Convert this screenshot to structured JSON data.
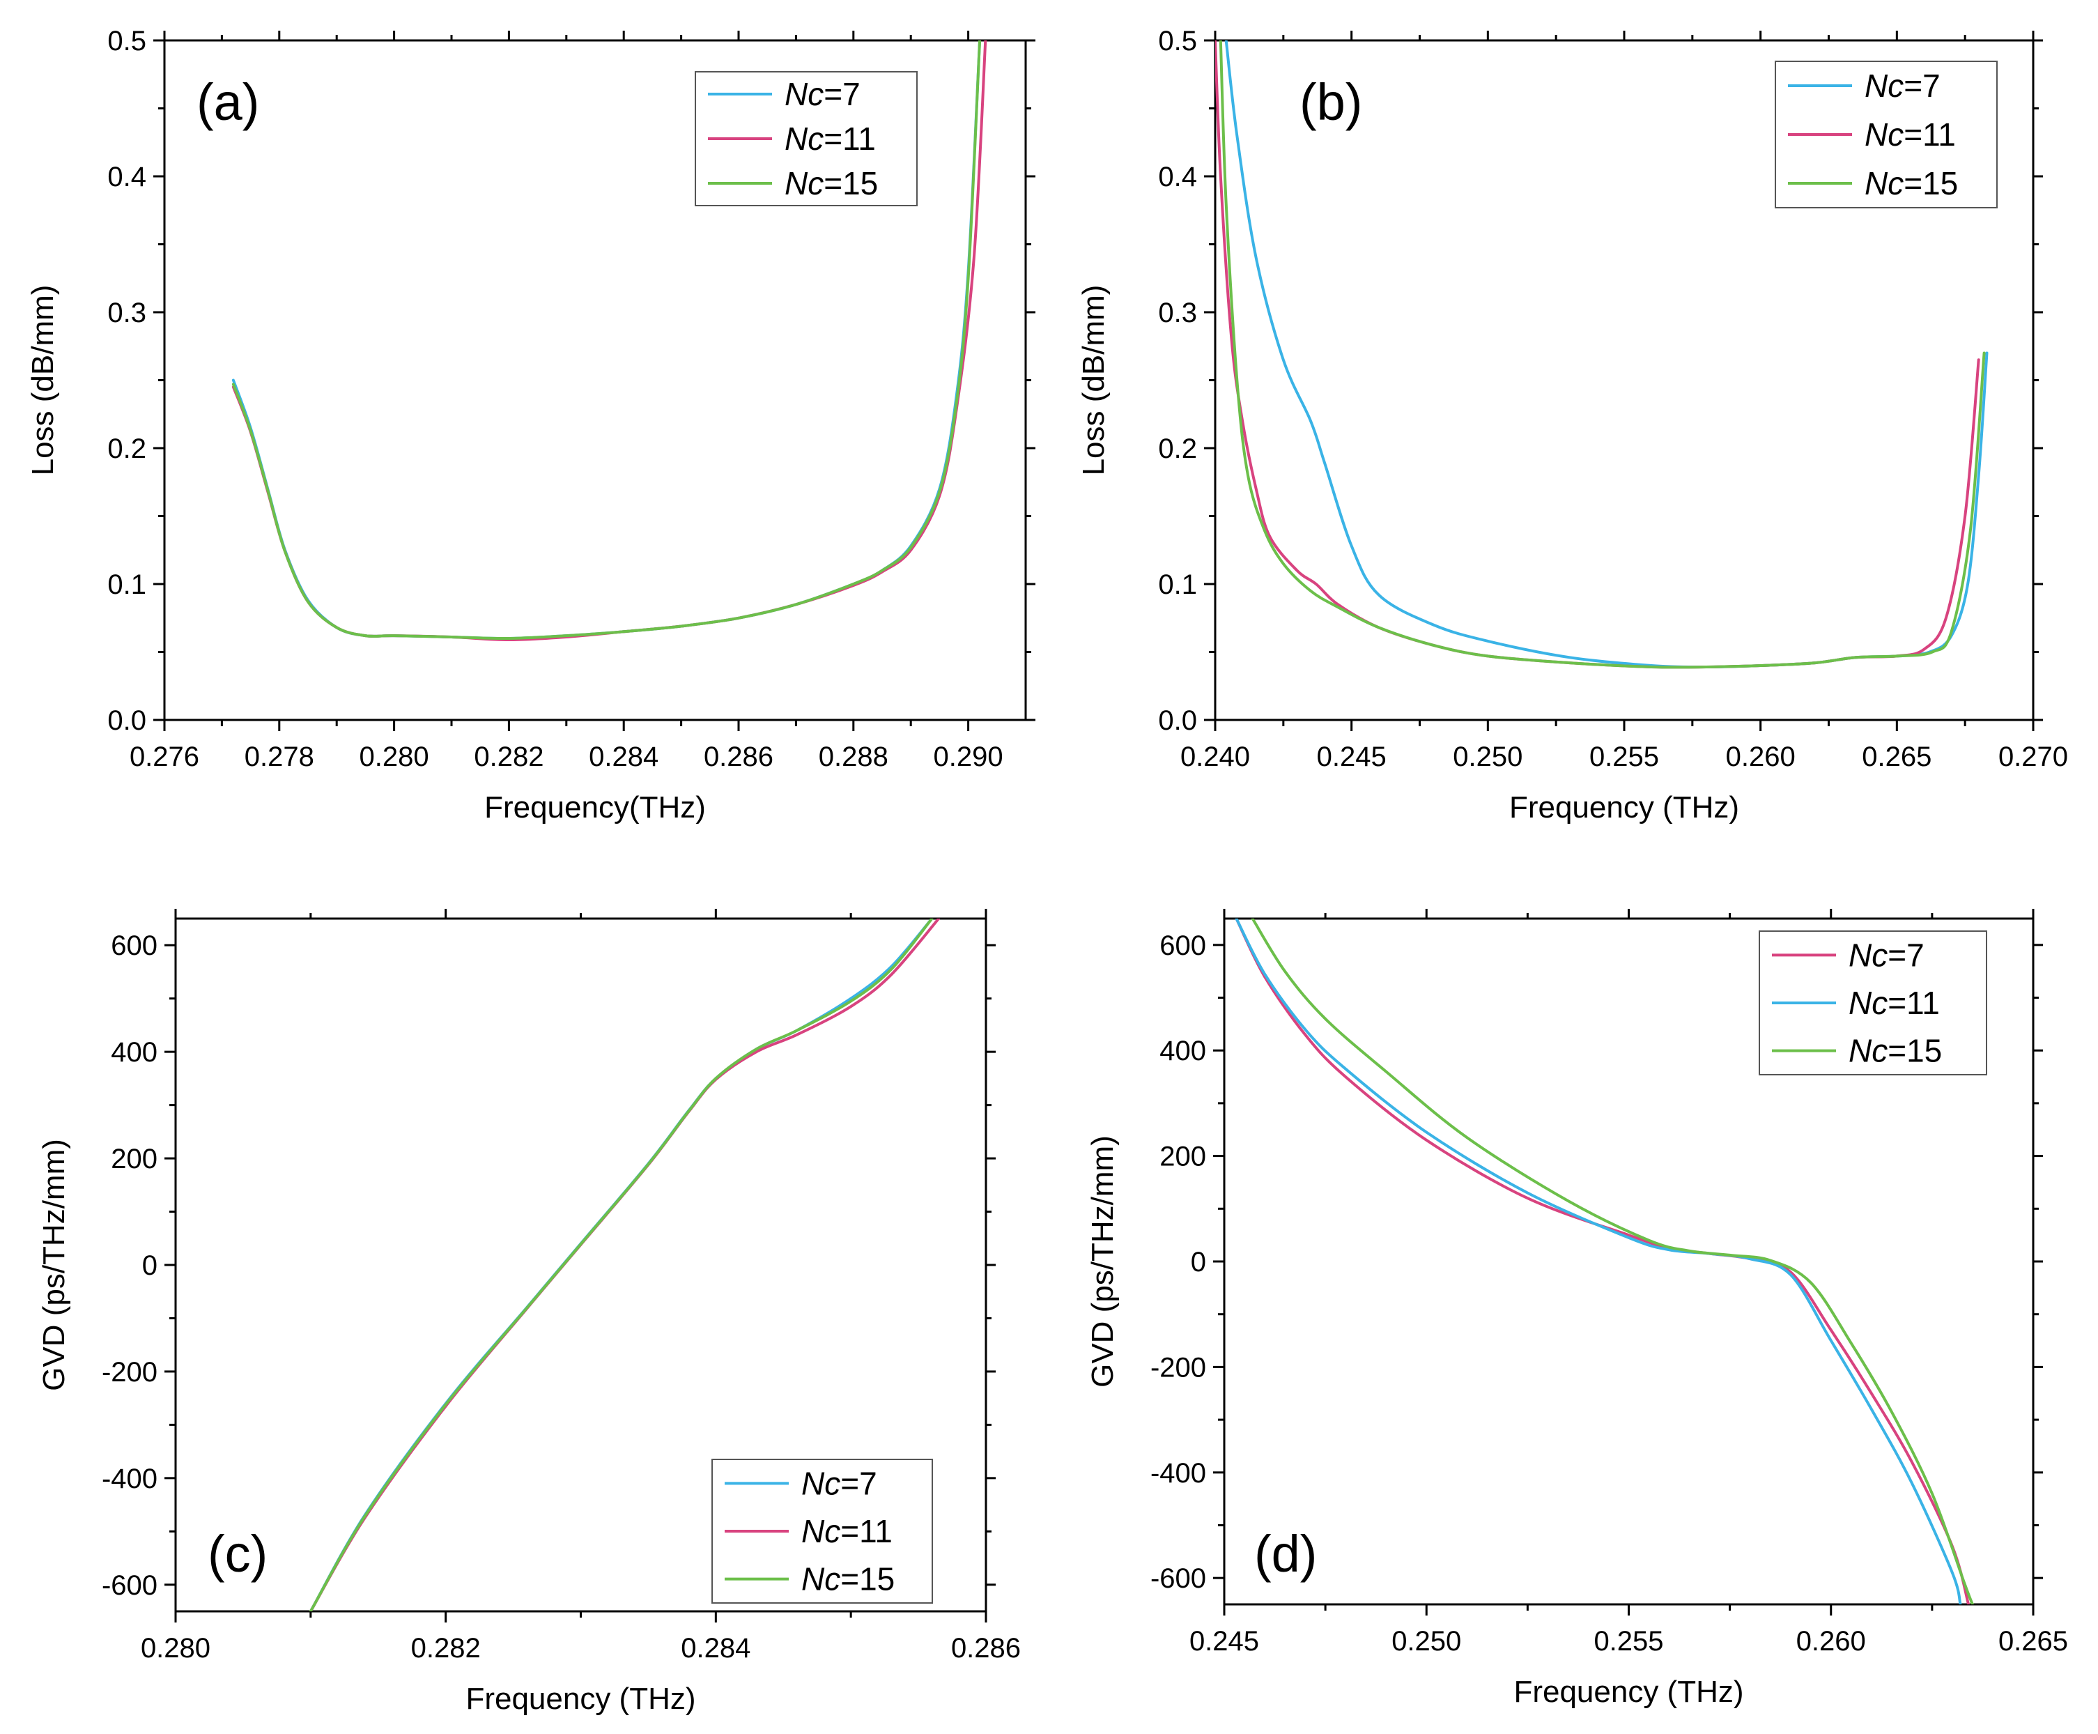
{
  "chart_data": [
    {
      "panel": "(a)",
      "type": "line",
      "xlabel": "Frequency(THz)",
      "ylabel": "Loss (dB/mm)",
      "xlim": [
        0.276,
        0.291
      ],
      "ylim": [
        0.0,
        0.5
      ],
      "xticks": [
        "0.276",
        "0.278",
        "0.280",
        "0.282",
        "0.284",
        "0.286",
        "0.288",
        "0.290"
      ],
      "yticks": [
        "0.0",
        "0.1",
        "0.2",
        "0.3",
        "0.4",
        "0.5"
      ],
      "legend_position": "top-right",
      "series": [
        {
          "name": "Nc=7",
          "legend_italic": "Nc",
          "legend_rest": "=7",
          "color": "#3ab3e6",
          "x": [
            0.2772,
            0.2775,
            0.2778,
            0.2781,
            0.2785,
            0.279,
            0.2795,
            0.28,
            0.281,
            0.282,
            0.283,
            0.284,
            0.285,
            0.286,
            0.287,
            0.288,
            0.2885,
            0.289,
            0.2895,
            0.2898,
            0.29,
            0.2902
          ],
          "y": [
            0.25,
            0.215,
            0.17,
            0.125,
            0.088,
            0.068,
            0.062,
            0.062,
            0.061,
            0.06,
            0.062,
            0.065,
            0.069,
            0.075,
            0.085,
            0.1,
            0.11,
            0.128,
            0.17,
            0.24,
            0.33,
            0.5
          ]
        },
        {
          "name": "Nc=11",
          "legend_italic": "Nc",
          "legend_rest": "=11",
          "color": "#d8437f",
          "x": [
            0.2772,
            0.2775,
            0.2778,
            0.2781,
            0.2785,
            0.279,
            0.2795,
            0.28,
            0.281,
            0.282,
            0.283,
            0.284,
            0.285,
            0.286,
            0.287,
            0.288,
            0.2885,
            0.289,
            0.2895,
            0.2898,
            0.2901,
            0.2903
          ],
          "y": [
            0.245,
            0.212,
            0.168,
            0.124,
            0.087,
            0.068,
            0.062,
            0.062,
            0.061,
            0.059,
            0.061,
            0.065,
            0.069,
            0.075,
            0.085,
            0.099,
            0.109,
            0.125,
            0.165,
            0.23,
            0.34,
            0.5
          ]
        },
        {
          "name": "Nc=15",
          "legend_italic": "Nc",
          "legend_rest": "=15",
          "color": "#6cbf4a",
          "x": [
            0.2772,
            0.2775,
            0.2778,
            0.2781,
            0.2785,
            0.279,
            0.2795,
            0.28,
            0.281,
            0.282,
            0.283,
            0.284,
            0.285,
            0.286,
            0.287,
            0.288,
            0.2885,
            0.289,
            0.2895,
            0.2898,
            0.29,
            0.2902
          ],
          "y": [
            0.247,
            0.213,
            0.169,
            0.124,
            0.087,
            0.068,
            0.062,
            0.062,
            0.061,
            0.06,
            0.062,
            0.065,
            0.069,
            0.075,
            0.085,
            0.1,
            0.11,
            0.127,
            0.168,
            0.235,
            0.325,
            0.5
          ]
        }
      ]
    },
    {
      "panel": "(b)",
      "type": "line",
      "xlabel": "Frequency (THz)",
      "ylabel": "Loss (dB/mm)",
      "xlim": [
        0.24,
        0.27
      ],
      "ylim": [
        0.0,
        0.5
      ],
      "xticks": [
        "0.240",
        "0.245",
        "0.250",
        "0.255",
        "0.260",
        "0.265",
        "0.270"
      ],
      "yticks": [
        "0.0",
        "0.1",
        "0.2",
        "0.3",
        "0.4",
        "0.5"
      ],
      "legend_position": "top-right",
      "series": [
        {
          "name": "Nc=7",
          "legend_italic": "Nc",
          "legend_rest": "=7",
          "color": "#3ab3e6",
          "x": [
            0.2404,
            0.2408,
            0.2415,
            0.2425,
            0.2435,
            0.244,
            0.245,
            0.246,
            0.248,
            0.25,
            0.253,
            0.256,
            0.258,
            0.26,
            0.262,
            0.2635,
            0.265,
            0.2662,
            0.267,
            0.2676,
            0.268,
            0.2683
          ],
          "y": [
            0.5,
            0.43,
            0.34,
            0.265,
            0.22,
            0.19,
            0.128,
            0.092,
            0.07,
            0.058,
            0.046,
            0.04,
            0.039,
            0.04,
            0.042,
            0.046,
            0.047,
            0.05,
            0.062,
            0.1,
            0.18,
            0.27
          ]
        },
        {
          "name": "Nc=11",
          "legend_italic": "Nc",
          "legend_rest": "=11",
          "color": "#d8437f",
          "x": [
            0.24,
            0.2402,
            0.2406,
            0.241,
            0.2415,
            0.242,
            0.243,
            0.2437,
            0.2445,
            0.246,
            0.248,
            0.25,
            0.253,
            0.256,
            0.258,
            0.26,
            0.262,
            0.2635,
            0.265,
            0.266,
            0.2668,
            0.2675,
            0.268
          ],
          "y": [
            0.5,
            0.4,
            0.28,
            0.22,
            0.17,
            0.135,
            0.11,
            0.1,
            0.085,
            0.068,
            0.055,
            0.047,
            0.042,
            0.039,
            0.039,
            0.04,
            0.042,
            0.046,
            0.047,
            0.052,
            0.075,
            0.15,
            0.265
          ]
        },
        {
          "name": "Nc=15",
          "legend_italic": "Nc",
          "legend_rest": "=15",
          "color": "#6cbf4a",
          "x": [
            0.2402,
            0.2404,
            0.2408,
            0.2412,
            0.2418,
            0.2425,
            0.2435,
            0.2445,
            0.246,
            0.248,
            0.25,
            0.253,
            0.256,
            0.258,
            0.26,
            0.262,
            0.2635,
            0.265,
            0.2663,
            0.267,
            0.2677,
            0.2682
          ],
          "y": [
            0.5,
            0.38,
            0.25,
            0.18,
            0.14,
            0.115,
            0.095,
            0.083,
            0.068,
            0.055,
            0.047,
            0.042,
            0.039,
            0.039,
            0.04,
            0.042,
            0.046,
            0.047,
            0.05,
            0.065,
            0.14,
            0.27
          ]
        }
      ]
    },
    {
      "panel": "(c)",
      "type": "line",
      "xlabel": "Frequency (THz)",
      "ylabel": "GVD (ps/THz/mm)",
      "xlim": [
        0.28,
        0.286
      ],
      "ylim": [
        -650,
        650
      ],
      "xticks": [
        "0.280",
        "0.282",
        "0.284",
        "0.286"
      ],
      "yticks": [
        "-600",
        "-400",
        "-200",
        "0",
        "200",
        "400",
        "600"
      ],
      "legend_position": "bottom-right",
      "series": [
        {
          "name": "Nc=7",
          "legend_italic": "Nc",
          "legend_rest": "=7",
          "color": "#3ab3e6",
          "x": [
            0.281,
            0.2814,
            0.282,
            0.2826,
            0.283,
            0.2835,
            0.2838,
            0.284,
            0.2843,
            0.2846,
            0.285,
            0.2853,
            0.2856
          ],
          "y": [
            -650,
            -470,
            -260,
            -80,
            40,
            190,
            290,
            350,
            405,
            440,
            500,
            560,
            650
          ]
        },
        {
          "name": "Nc=11",
          "legend_italic": "Nc",
          "legend_rest": "=11",
          "color": "#d8437f",
          "x": [
            0.281,
            0.2814,
            0.282,
            0.2826,
            0.283,
            0.2835,
            0.2838,
            0.284,
            0.2843,
            0.2846,
            0.285,
            0.2853,
            0.28565
          ],
          "y": [
            -650,
            -475,
            -265,
            -82,
            38,
            188,
            288,
            348,
            400,
            432,
            485,
            545,
            650
          ]
        },
        {
          "name": "Nc=15",
          "legend_italic": "Nc",
          "legend_rest": "=15",
          "color": "#6cbf4a",
          "x": [
            0.281,
            0.2814,
            0.282,
            0.2826,
            0.283,
            0.2835,
            0.2838,
            0.284,
            0.2843,
            0.2846,
            0.285,
            0.2853,
            0.2856
          ],
          "y": [
            -650,
            -472,
            -262,
            -81,
            39,
            189,
            289,
            350,
            405,
            440,
            495,
            555,
            650
          ]
        }
      ]
    },
    {
      "panel": "(d)",
      "type": "line",
      "xlabel": "Frequency (THz)",
      "ylabel": "GVD (ps/THz/mm)",
      "xlim": [
        0.245,
        0.265
      ],
      "ylim": [
        -650,
        650
      ],
      "xticks": [
        "0.245",
        "0.250",
        "0.255",
        "0.260",
        "0.265"
      ],
      "yticks": [
        "-600",
        "-400",
        "-200",
        "0",
        "200",
        "400",
        "600"
      ],
      "legend_position": "top-right",
      "series": [
        {
          "name": "Nc=7",
          "legend_italic": "Nc",
          "legend_rest": "=7",
          "color": "#d8437f",
          "x": [
            0.2453,
            0.246,
            0.247,
            0.248,
            0.25,
            0.2525,
            0.255,
            0.256,
            0.257,
            0.258,
            0.259,
            0.26,
            0.261,
            0.262,
            0.263,
            0.2634
          ],
          "y": [
            650,
            540,
            430,
            350,
            230,
            120,
            50,
            25,
            15,
            5,
            -20,
            -130,
            -250,
            -380,
            -540,
            -650
          ]
        },
        {
          "name": "Nc=11",
          "legend_italic": "Nc",
          "legend_rest": "=11",
          "color": "#3ab3e6",
          "x": [
            0.2453,
            0.246,
            0.247,
            0.248,
            0.25,
            0.2525,
            0.255,
            0.256,
            0.257,
            0.258,
            0.259,
            0.26,
            0.261,
            0.262,
            0.263,
            0.2632
          ],
          "y": [
            650,
            545,
            440,
            365,
            245,
            130,
            45,
            22,
            15,
            5,
            -25,
            -150,
            -280,
            -420,
            -590,
            -650
          ]
        },
        {
          "name": "Nc=15",
          "legend_italic": "Nc",
          "legend_rest": "=15",
          "color": "#6cbf4a",
          "x": [
            0.2457,
            0.2465,
            0.2475,
            0.249,
            0.251,
            0.2535,
            0.2555,
            0.2565,
            0.2575,
            0.2585,
            0.2595,
            0.2605,
            0.2615,
            0.2625,
            0.2633,
            0.2635
          ],
          "y": [
            650,
            550,
            460,
            360,
            235,
            115,
            40,
            20,
            12,
            2,
            -40,
            -155,
            -285,
            -440,
            -610,
            -650
          ]
        }
      ]
    }
  ]
}
